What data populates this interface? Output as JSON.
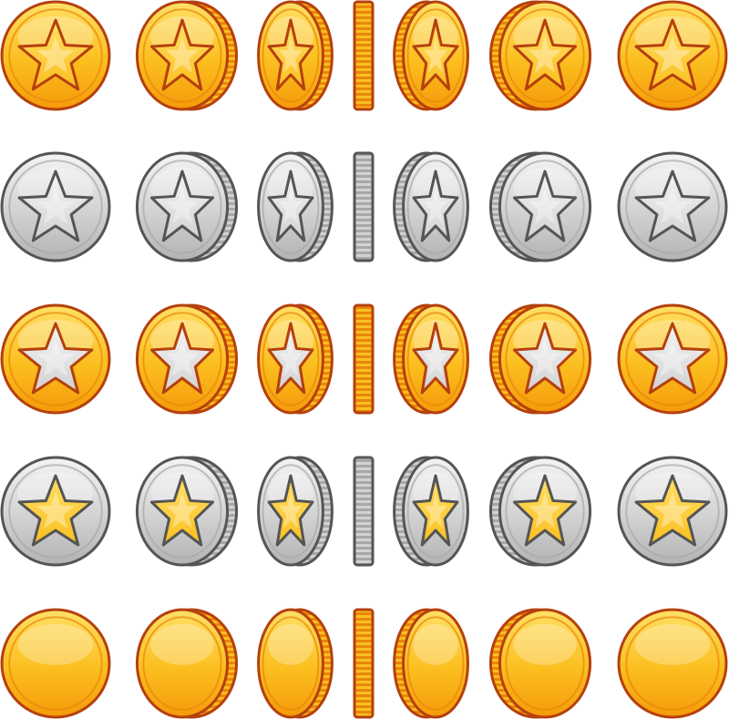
{
  "sprite_sheet": {
    "frame_count": 7,
    "frame_widths": [
      1.0,
      0.84,
      0.6,
      0.0,
      0.6,
      0.84,
      1.0
    ],
    "variants": [
      {
        "name": "gold-coin-gold-star",
        "face": "gold",
        "star": "gold"
      },
      {
        "name": "silver-coin-silver-star",
        "face": "silver",
        "star": "silver"
      },
      {
        "name": "gold-coin-silver-star",
        "face": "gold",
        "star": "silver"
      },
      {
        "name": "silver-coin-gold-star",
        "face": "silver",
        "star": "gold"
      },
      {
        "name": "gold-coin-blank",
        "face": "gold",
        "star": "none"
      }
    ]
  },
  "palette": {
    "gold": {
      "light": "#ffe066",
      "mid": "#fbbf1f",
      "dark": "#f59a0a",
      "outline": "#b5400e",
      "rim": "#e9860c"
    },
    "silver": {
      "light": "#f4f4f4",
      "mid": "#d2d2d2",
      "dark": "#b3b3b3",
      "outline": "#555555",
      "rim": "#a8a8a8"
    }
  }
}
